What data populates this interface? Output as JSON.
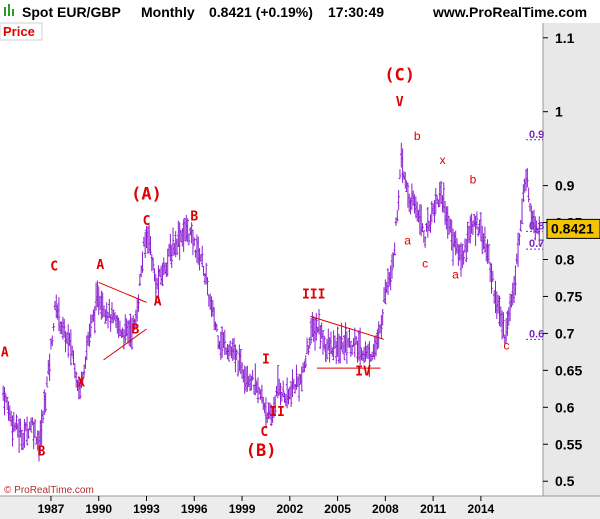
{
  "header": {
    "title": "Spot EUR/GBP",
    "period": "Monthly",
    "quote": "0.8421 (+0.19%)",
    "time": "17:30:49",
    "site": "www.ProRealTime.com"
  },
  "panel_label": "Price",
  "copyright": "© ProRealTime.com",
  "last_price_label": "0.8421",
  "colors": {
    "bars": "#8a1fd0",
    "labels": "#e00000",
    "price_box": "#f5c400",
    "axis_bg": "#e8e8e8"
  },
  "chart_data": {
    "type": "bar",
    "ylim": [
      0.48,
      1.12
    ],
    "xlim": [
      1983.8,
      2017.9
    ],
    "yticks": [
      {
        "value": 1.1,
        "label": "1.1"
      },
      {
        "value": 1.0,
        "label": "1"
      },
      {
        "value": 0.9,
        "label": "0.9"
      },
      {
        "value": 0.85,
        "label": "0.85"
      },
      {
        "value": 0.8,
        "label": "0.8"
      },
      {
        "value": 0.75,
        "label": "0.75"
      },
      {
        "value": 0.7,
        "label": "0.7"
      },
      {
        "value": 0.65,
        "label": "0.65"
      },
      {
        "value": 0.6,
        "label": "0.6"
      },
      {
        "value": 0.55,
        "label": "0.55"
      },
      {
        "value": 0.5,
        "label": "0.5"
      }
    ],
    "xticks": [
      {
        "value": 1987,
        "label": "1987"
      },
      {
        "value": 1990,
        "label": "1990"
      },
      {
        "value": 1993,
        "label": "1993"
      },
      {
        "value": 1996,
        "label": "1996"
      },
      {
        "value": 1999,
        "label": "1999"
      },
      {
        "value": 2002,
        "label": "2002"
      },
      {
        "value": 2005,
        "label": "2005"
      },
      {
        "value": 2008,
        "label": "2008"
      },
      {
        "value": 2011,
        "label": "2011"
      },
      {
        "value": 2014,
        "label": "2014"
      }
    ],
    "price_path": [
      [
        1984.0,
        0.62
      ],
      [
        1984.6,
        0.58
      ],
      [
        1985.2,
        0.56
      ],
      [
        1985.8,
        0.58
      ],
      [
        1986.3,
        0.55
      ],
      [
        1986.9,
        0.66
      ],
      [
        1987.3,
        0.74
      ],
      [
        1987.8,
        0.7
      ],
      [
        1988.3,
        0.68
      ],
      [
        1988.8,
        0.62
      ],
      [
        1989.4,
        0.7
      ],
      [
        1990.0,
        0.75
      ],
      [
        1990.8,
        0.72
      ],
      [
        1991.6,
        0.7
      ],
      [
        1992.3,
        0.71
      ],
      [
        1992.8,
        0.81
      ],
      [
        1993.1,
        0.84
      ],
      [
        1993.6,
        0.76
      ],
      [
        1994.3,
        0.8
      ],
      [
        1995.0,
        0.83
      ],
      [
        1995.6,
        0.84
      ],
      [
        1996.0,
        0.82
      ],
      [
        1996.5,
        0.8
      ],
      [
        1997.0,
        0.74
      ],
      [
        1997.6,
        0.69
      ],
      [
        1998.2,
        0.68
      ],
      [
        1998.8,
        0.66
      ],
      [
        1999.5,
        0.64
      ],
      [
        2000.3,
        0.61
      ],
      [
        2000.8,
        0.58
      ],
      [
        2001.3,
        0.63
      ],
      [
        2001.8,
        0.61
      ],
      [
        2002.3,
        0.63
      ],
      [
        2002.8,
        0.64
      ],
      [
        2003.3,
        0.7
      ],
      [
        2003.8,
        0.71
      ],
      [
        2004.3,
        0.68
      ],
      [
        2005.0,
        0.68
      ],
      [
        2005.6,
        0.69
      ],
      [
        2006.3,
        0.68
      ],
      [
        2007.0,
        0.67
      ],
      [
        2007.6,
        0.69
      ],
      [
        2008.0,
        0.76
      ],
      [
        2008.5,
        0.8
      ],
      [
        2009.0,
        0.93
      ],
      [
        2009.5,
        0.88
      ],
      [
        2010.0,
        0.87
      ],
      [
        2010.5,
        0.83
      ],
      [
        2011.0,
        0.87
      ],
      [
        2011.5,
        0.89
      ],
      [
        2012.2,
        0.83
      ],
      [
        2012.8,
        0.8
      ],
      [
        2013.3,
        0.84
      ],
      [
        2013.9,
        0.85
      ],
      [
        2014.5,
        0.8
      ],
      [
        2015.0,
        0.74
      ],
      [
        2015.5,
        0.7
      ],
      [
        2015.9,
        0.74
      ],
      [
        2016.5,
        0.84
      ],
      [
        2016.8,
        0.92
      ],
      [
        2017.2,
        0.86
      ],
      [
        2017.7,
        0.84
      ]
    ],
    "wave_labels": [
      {
        "text": "A",
        "x": 1984.1,
        "y": 0.669,
        "size": "mid"
      },
      {
        "text": "B",
        "x": 1986.4,
        "y": 0.535,
        "size": "mid"
      },
      {
        "text": "C",
        "x": 1987.2,
        "y": 0.785,
        "size": "mid"
      },
      {
        "text": "X",
        "x": 1988.9,
        "y": 0.628,
        "size": "mid"
      },
      {
        "text": "A",
        "x": 1990.1,
        "y": 0.787,
        "size": "mid"
      },
      {
        "text": "B",
        "x": 1992.3,
        "y": 0.7,
        "size": "mid"
      },
      {
        "text": "(A)",
        "x": 1993.0,
        "y": 0.881,
        "size": "big"
      },
      {
        "text": "C",
        "x": 1993.0,
        "y": 0.847,
        "size": "mid"
      },
      {
        "text": "A",
        "x": 1993.7,
        "y": 0.738,
        "size": "mid"
      },
      {
        "text": "B",
        "x": 1996.0,
        "y": 0.853,
        "size": "mid"
      },
      {
        "text": "I",
        "x": 2000.5,
        "y": 0.659,
        "size": "mid"
      },
      {
        "text": "C",
        "x": 2000.4,
        "y": 0.561,
        "size": "mid"
      },
      {
        "text": "II",
        "x": 2001.2,
        "y": 0.588,
        "size": "mid"
      },
      {
        "text": "(B)",
        "x": 2000.2,
        "y": 0.534,
        "size": "big"
      },
      {
        "text": "III",
        "x": 2003.5,
        "y": 0.747,
        "size": "mid"
      },
      {
        "text": "IV",
        "x": 2006.6,
        "y": 0.643,
        "size": "mid"
      },
      {
        "text": "(C)",
        "x": 2008.9,
        "y": 1.042,
        "size": "big"
      },
      {
        "text": "V",
        "x": 2008.9,
        "y": 1.008,
        "size": "mid"
      },
      {
        "text": "b",
        "x": 2010.0,
        "y": 0.962,
        "size": "sm"
      },
      {
        "text": "a",
        "x": 2009.4,
        "y": 0.82,
        "size": "sm"
      },
      {
        "text": "c",
        "x": 2010.5,
        "y": 0.789,
        "size": "sm"
      },
      {
        "text": "x",
        "x": 2011.6,
        "y": 0.929,
        "size": "sm"
      },
      {
        "text": "a",
        "x": 2012.4,
        "y": 0.774,
        "size": "sm"
      },
      {
        "text": "b",
        "x": 2013.5,
        "y": 0.903,
        "size": "sm"
      },
      {
        "text": "c",
        "x": 2015.6,
        "y": 0.678,
        "size": "sm"
      }
    ],
    "trendlines": [
      {
        "x1": 1990.0,
        "y1": 0.769,
        "x2": 1993.0,
        "y2": 0.742
      },
      {
        "x1": 1990.3,
        "y1": 0.664,
        "x2": 1993.0,
        "y2": 0.706
      },
      {
        "x1": 2003.3,
        "y1": 0.723,
        "x2": 2007.9,
        "y2": 0.692
      },
      {
        "x1": 2003.7,
        "y1": 0.653,
        "x2": 2007.7,
        "y2": 0.653
      }
    ],
    "fib_lines": [
      {
        "label": "0.9",
        "value": 0.962
      },
      {
        "label": "0.8",
        "value": 0.838
      },
      {
        "label": "0.7",
        "value": 0.814
      },
      {
        "label": "0.6",
        "value": 0.692
      }
    ]
  }
}
